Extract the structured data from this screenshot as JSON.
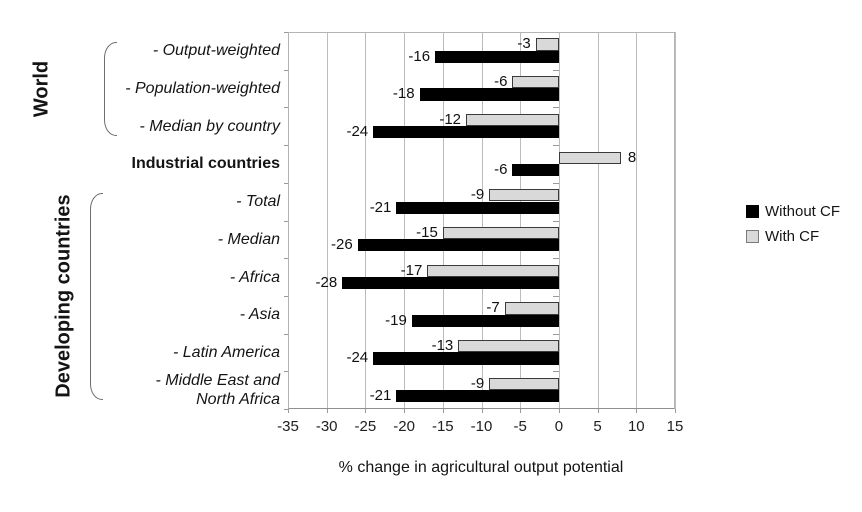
{
  "chart_data": {
    "type": "bar",
    "orientation": "horizontal",
    "xlabel": "% change in agricultural output potential",
    "xlim": [
      -35,
      15
    ],
    "xticks": [
      -35,
      -30,
      -25,
      -20,
      -15,
      -10,
      -5,
      0,
      5,
      10,
      15
    ],
    "grid": true,
    "legend_position": "right",
    "categories": [
      {
        "label": "- Output-weighted",
        "italic": true
      },
      {
        "label": "- Population-weighted",
        "italic": true
      },
      {
        "label": "- Median by country",
        "italic": true
      },
      {
        "label": "Industrial countries",
        "italic": false
      },
      {
        "label": "- Total",
        "italic": true
      },
      {
        "label": "- Median",
        "italic": true
      },
      {
        "label": "- Africa",
        "italic": true
      },
      {
        "label": "- Asia",
        "italic": true
      },
      {
        "label": "- Latin America",
        "italic": true
      },
      {
        "label": "- Middle East and\nNorth Africa",
        "italic": true
      }
    ],
    "series": [
      {
        "name": "Without CF",
        "color": "#000000",
        "border": "#000000",
        "values": [
          -16,
          -18,
          -24,
          -6,
          -21,
          -26,
          -28,
          -19,
          -24,
          -21
        ]
      },
      {
        "name": "With CF",
        "color": "#d9d9d9",
        "border": "#3a3a3a",
        "values": [
          -3,
          -6,
          -12,
          8,
          -9,
          -15,
          -17,
          -7,
          -13,
          -9
        ]
      }
    ],
    "groups": [
      {
        "label": "World",
        "start": 0,
        "end": 2
      },
      {
        "label": "Developing countries",
        "start": 4,
        "end": 9
      }
    ]
  },
  "legend": {
    "items": [
      {
        "label": "Without CF",
        "color": "#000000",
        "border": "#000000"
      },
      {
        "label": "With CF",
        "color": "#d9d9d9",
        "border": "#7a7a7a"
      }
    ]
  }
}
